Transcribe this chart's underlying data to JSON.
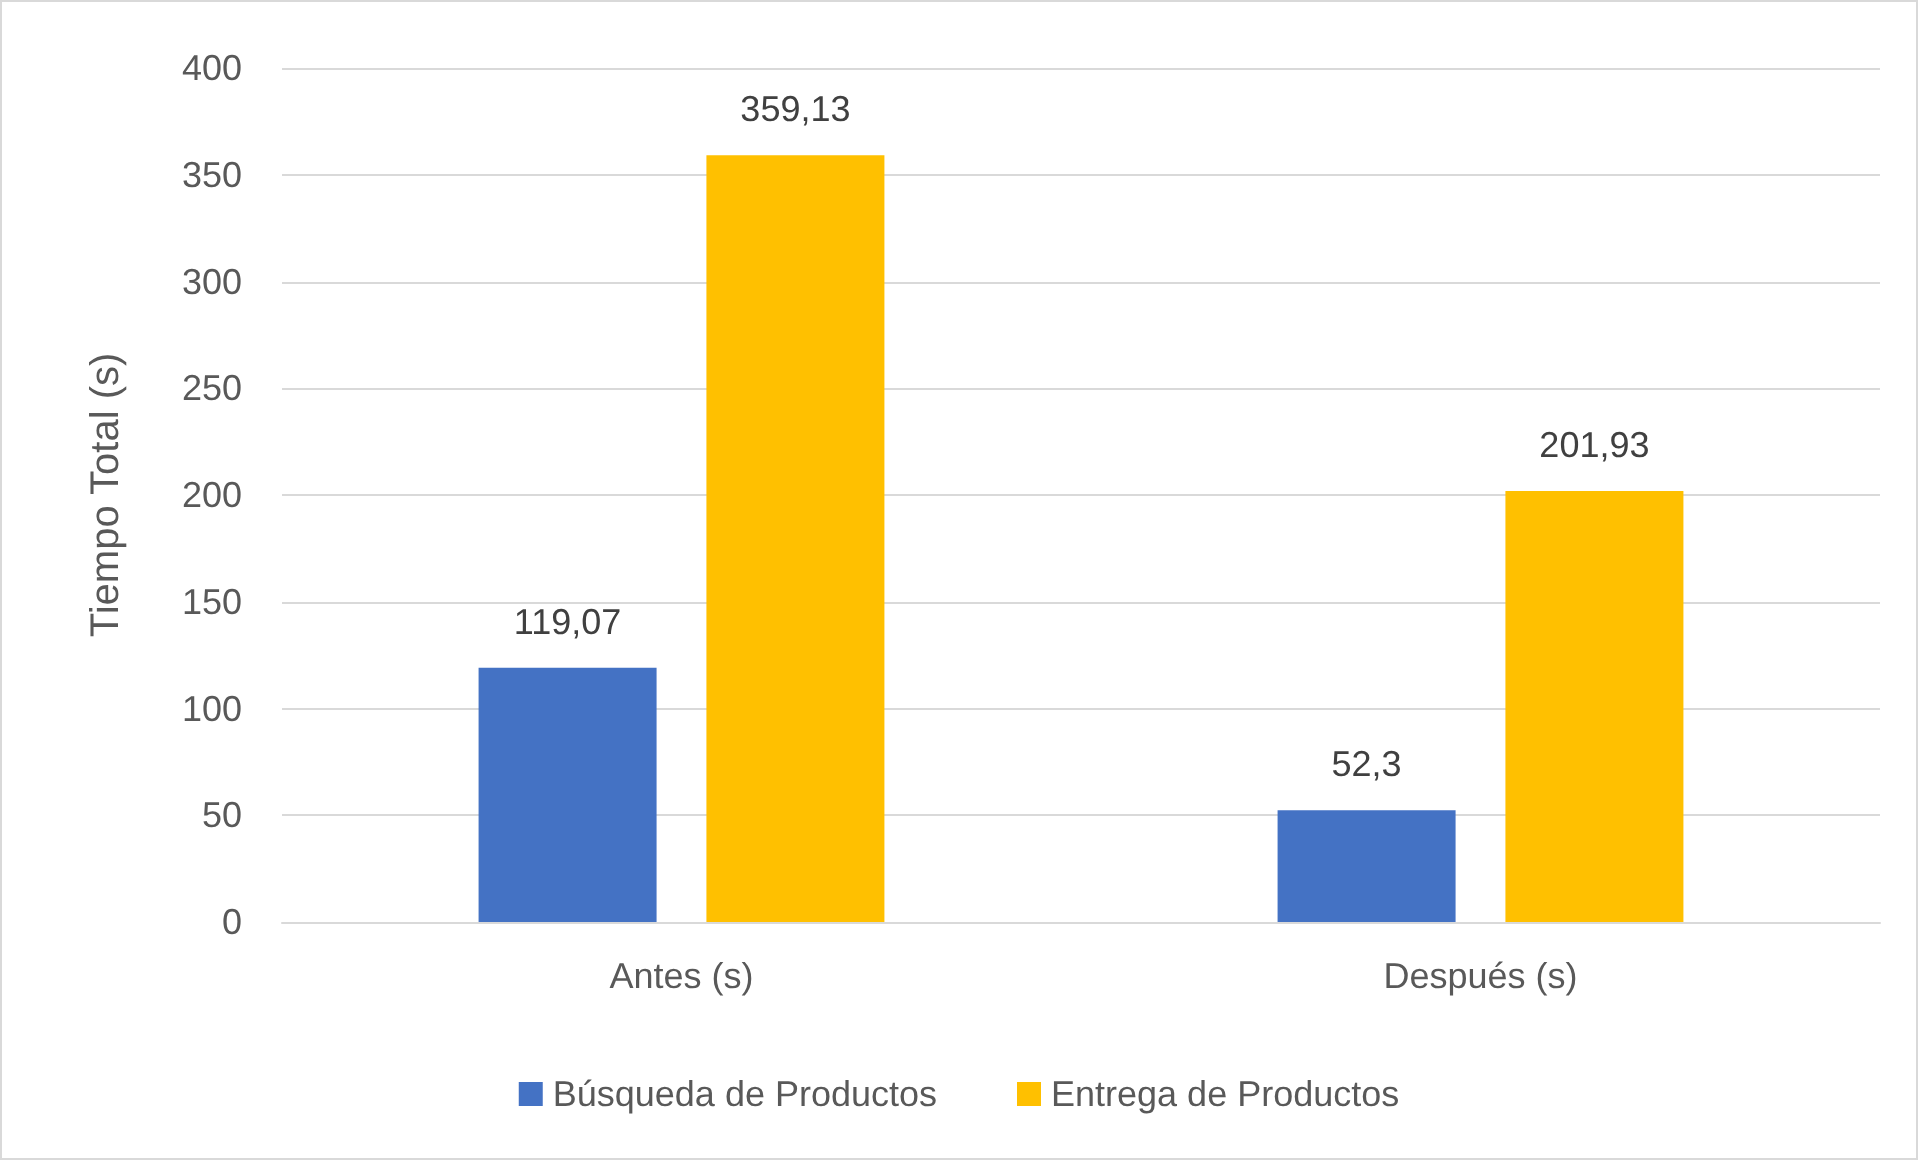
{
  "chart_data": {
    "type": "bar",
    "ylabel": "Tiempo Total (s)",
    "categories": [
      "Antes (s)",
      "Después (s)"
    ],
    "series": [
      {
        "name": "Búsqueda de Productos",
        "color": "#4472c4",
        "values": [
          119.07,
          52.3
        ],
        "value_labels": [
          "119,07",
          "52,3"
        ]
      },
      {
        "name": "Entrega de Productos",
        "color": "#ffc000",
        "values": [
          359.13,
          201.93
        ],
        "value_labels": [
          "359,13",
          "201,93"
        ]
      }
    ],
    "ylim": [
      0,
      400
    ],
    "yticks": [
      0,
      50,
      100,
      150,
      200,
      250,
      300,
      350,
      400
    ],
    "grid": "y",
    "legend": "bottom"
  }
}
